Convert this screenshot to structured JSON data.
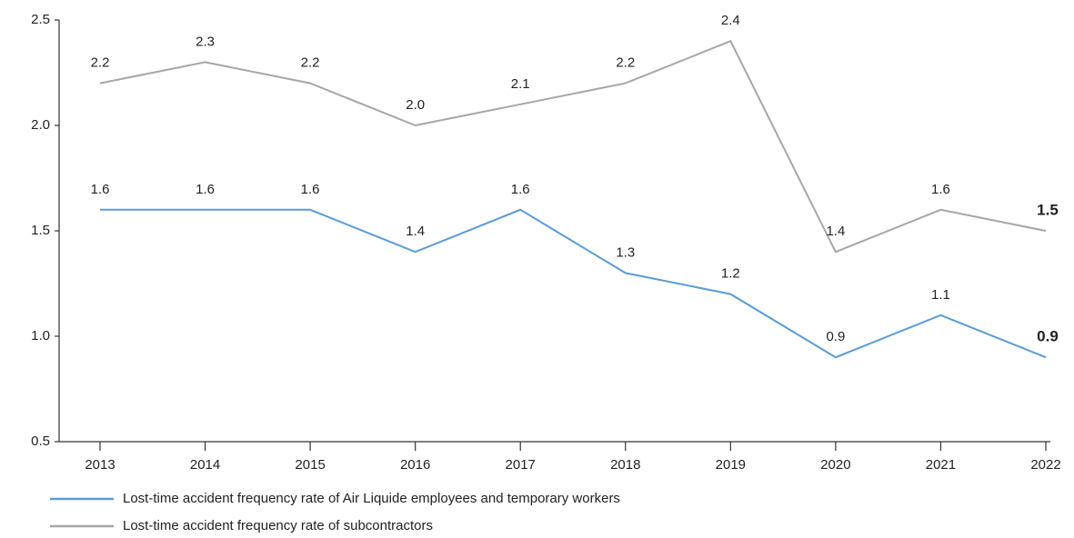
{
  "chart_data": {
    "type": "line",
    "categories": [
      "2013",
      "2014",
      "2015",
      "2016",
      "2017",
      "2018",
      "2019",
      "2020",
      "2021",
      "2022"
    ],
    "series": [
      {
        "name": "Lost-time accident frequency rate of Air Liquide employees and temporary workers",
        "color": "#5b9bd5",
        "values": [
          1.6,
          1.6,
          1.6,
          1.4,
          1.6,
          1.3,
          1.2,
          0.9,
          1.1,
          0.9
        ]
      },
      {
        "name": "Lost-time accident frequency rate of subcontractors",
        "color": "#a6a6a6",
        "values": [
          2.2,
          2.3,
          2.2,
          2.0,
          2.1,
          2.2,
          2.4,
          1.4,
          1.6,
          1.5
        ],
        "value_labels": [
          "2.2",
          "2.3",
          "2.2",
          "2.0",
          "2.1",
          "2.2",
          "2.4",
          "1.4",
          "1.6",
          "1.5"
        ]
      }
    ],
    "ylim": [
      0.5,
      2.5
    ],
    "yticks": [
      0.5,
      {
        "value": 1,
        "label": "1.0"
      },
      1.5,
      {
        "value": 2,
        "label": "2.0"
      },
      2.5
    ],
    "grid": false
  }
}
